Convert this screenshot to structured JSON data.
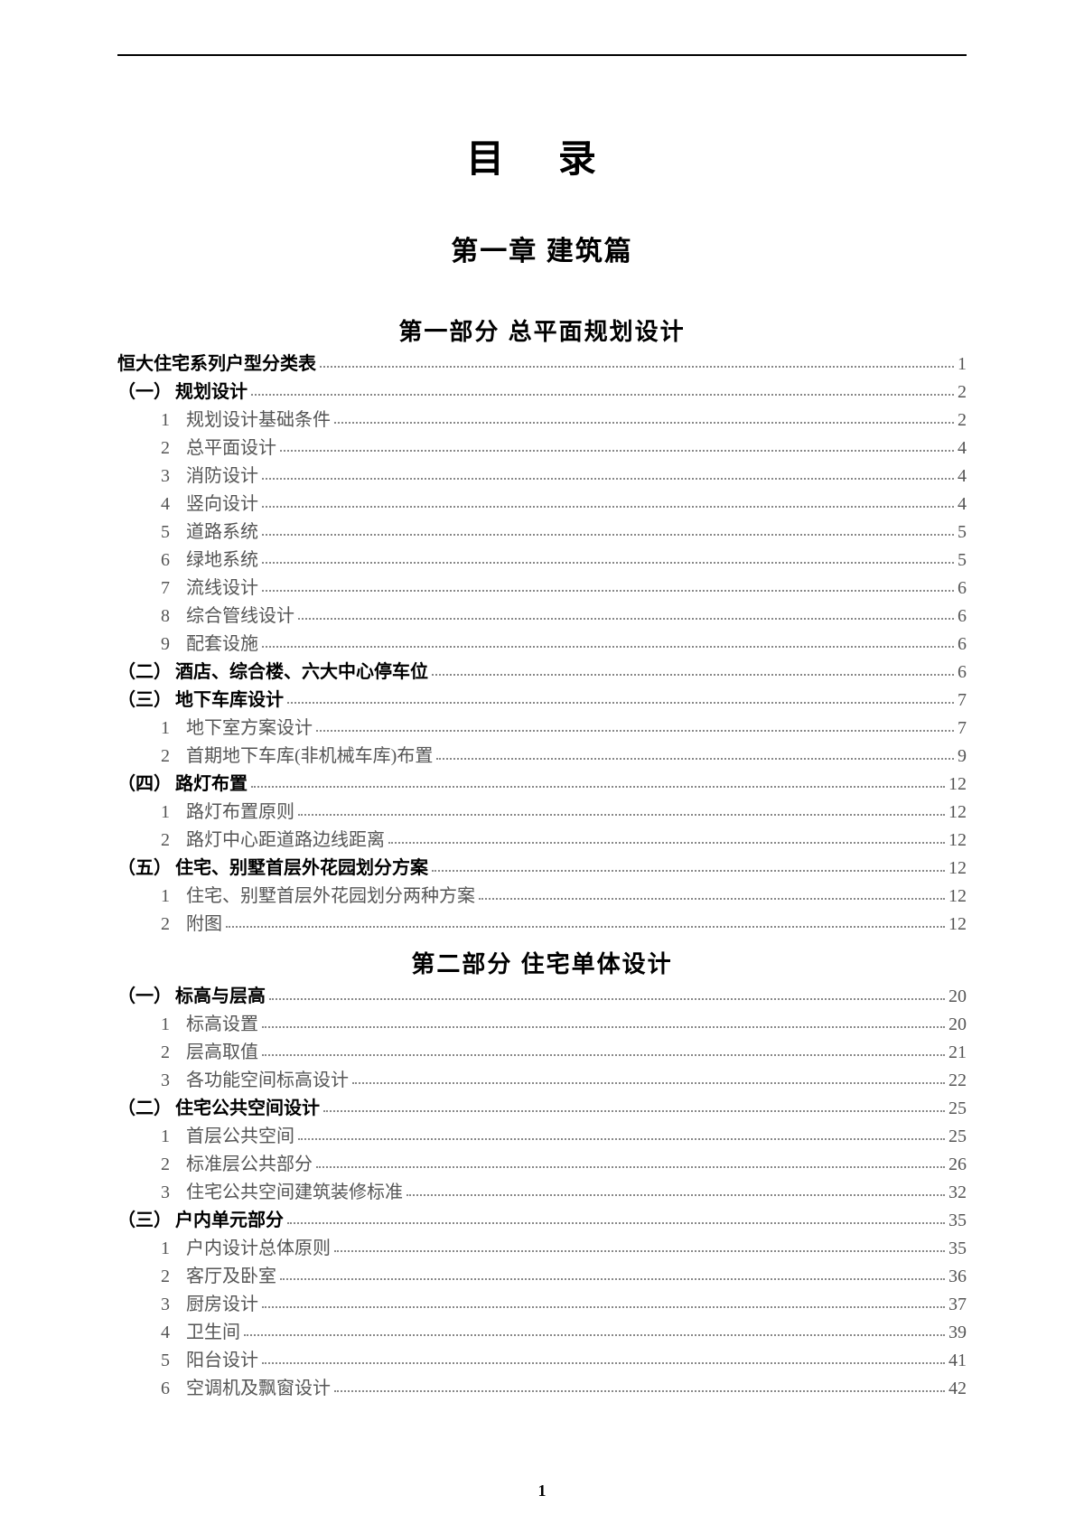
{
  "main_title": "目  录",
  "chapter_title": "第一章 建筑篇",
  "footer_page": "1",
  "parts": [
    {
      "title": "第一部分  总平面规划设计",
      "items": [
        {
          "level": 0,
          "prefix": "",
          "num": "",
          "label": "恒大住宅系列户型分类表",
          "page": "1"
        },
        {
          "level": 1,
          "prefix": "（一）",
          "num": "",
          "label": "规划设计",
          "page": "2"
        },
        {
          "level": 2,
          "prefix": "",
          "num": "1",
          "label": "规划设计基础条件",
          "page": "2"
        },
        {
          "level": 2,
          "prefix": "",
          "num": "2",
          "label": "总平面设计",
          "page": "4"
        },
        {
          "level": 2,
          "prefix": "",
          "num": "3",
          "label": "消防设计",
          "page": "4"
        },
        {
          "level": 2,
          "prefix": "",
          "num": "4",
          "label": "竖向设计",
          "page": "4"
        },
        {
          "level": 2,
          "prefix": "",
          "num": "5",
          "label": "道路系统",
          "page": "5"
        },
        {
          "level": 2,
          "prefix": "",
          "num": "6",
          "label": "绿地系统",
          "page": "5"
        },
        {
          "level": 2,
          "prefix": "",
          "num": "7",
          "label": "流线设计",
          "page": "6"
        },
        {
          "level": 2,
          "prefix": "",
          "num": "8",
          "label": "综合管线设计",
          "page": "6"
        },
        {
          "level": 2,
          "prefix": "",
          "num": "9",
          "label": "配套设施",
          "page": "6"
        },
        {
          "level": 1,
          "prefix": "（二）",
          "num": "",
          "label": "酒店、综合楼、六大中心停车位",
          "page": "6"
        },
        {
          "level": 1,
          "prefix": "（三）",
          "num": "",
          "label": "地下车库设计",
          "page": "7"
        },
        {
          "level": 2,
          "prefix": "",
          "num": "1",
          "label": "地下室方案设计",
          "page": "7"
        },
        {
          "level": 2,
          "prefix": "",
          "num": "2",
          "label": "首期地下车库(非机械车库)布置",
          "page": "9"
        },
        {
          "level": 1,
          "prefix": "（四）",
          "num": "",
          "label": "路灯布置",
          "page": "12"
        },
        {
          "level": 2,
          "prefix": "",
          "num": "1",
          "label": "路灯布置原则",
          "page": "12"
        },
        {
          "level": 2,
          "prefix": "",
          "num": "2",
          "label": "路灯中心距道路边线距离",
          "page": "12"
        },
        {
          "level": 1,
          "prefix": "（五）",
          "num": "",
          "label": "住宅、别墅首层外花园划分方案",
          "page": "12"
        },
        {
          "level": 2,
          "prefix": "",
          "num": "1",
          "label": "住宅、别墅首层外花园划分两种方案",
          "page": "12"
        },
        {
          "level": 2,
          "prefix": "",
          "num": "2",
          "label": "附图",
          "page": "12"
        }
      ]
    },
    {
      "title": "第二部分  住宅单体设计",
      "items": [
        {
          "level": 1,
          "prefix": "（一）",
          "num": "",
          "label": "标高与层高",
          "page": "20"
        },
        {
          "level": 2,
          "prefix": "",
          "num": "1",
          "label": "标高设置",
          "page": "20"
        },
        {
          "level": 2,
          "prefix": "",
          "num": "2",
          "label": "层高取值",
          "page": "21"
        },
        {
          "level": 2,
          "prefix": "",
          "num": "3",
          "label": "各功能空间标高设计",
          "page": "22"
        },
        {
          "level": 1,
          "prefix": "（二）",
          "num": "",
          "label": "住宅公共空间设计",
          "page": "25"
        },
        {
          "level": 2,
          "prefix": "",
          "num": "1",
          "label": "首层公共空间",
          "page": "25"
        },
        {
          "level": 2,
          "prefix": "",
          "num": "2",
          "label": "标准层公共部分",
          "page": "26"
        },
        {
          "level": 2,
          "prefix": "",
          "num": "3",
          "label": "住宅公共空间建筑装修标准",
          "page": "32"
        },
        {
          "level": 1,
          "prefix": "（三）",
          "num": "",
          "label": "户内单元部分",
          "page": "35"
        },
        {
          "level": 2,
          "prefix": "",
          "num": "1",
          "label": "户内设计总体原则",
          "page": "35"
        },
        {
          "level": 2,
          "prefix": "",
          "num": "2",
          "label": "客厅及卧室",
          "page": "36"
        },
        {
          "level": 2,
          "prefix": "",
          "num": "3",
          "label": "厨房设计",
          "page": "37"
        },
        {
          "level": 2,
          "prefix": "",
          "num": "4",
          "label": "卫生间",
          "page": "39"
        },
        {
          "level": 2,
          "prefix": "",
          "num": "5",
          "label": "阳台设计",
          "page": "41"
        },
        {
          "level": 2,
          "prefix": "",
          "num": "6",
          "label": "空调机及飘窗设计",
          "page": "42"
        }
      ]
    }
  ]
}
